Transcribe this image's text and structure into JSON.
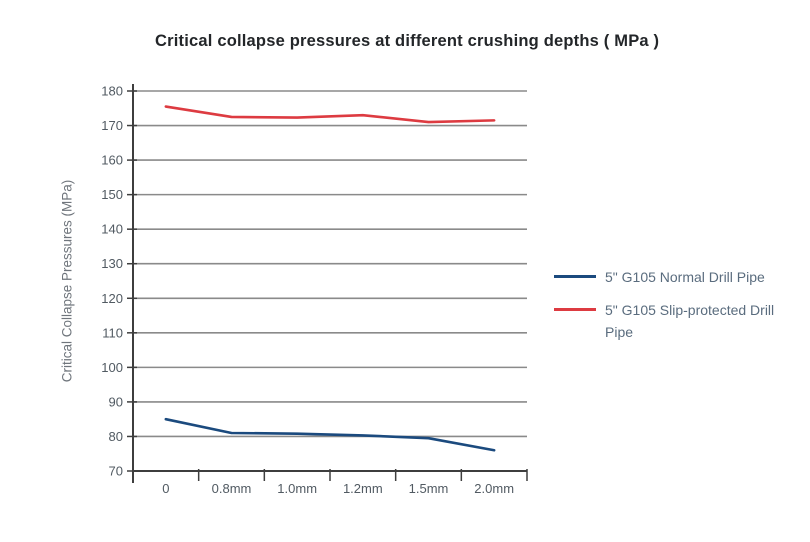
{
  "title": "Critical collapse pressures at different crushing depths ( MPa )",
  "chart_data": {
    "type": "line",
    "title": "Critical collapse pressures at different crushing depths ( MPa )",
    "categories": [
      "0",
      "0.8mm",
      "1.0mm",
      "1.2mm",
      "1.5mm",
      "2.0mm"
    ],
    "series": [
      {
        "name": "5\" G105 Normal Drill Pipe",
        "color": "#1b4a7e",
        "values": [
          85,
          81,
          80.8,
          80.3,
          79.5,
          76
        ]
      },
      {
        "name": "5\" G105 Slip-protected Drill Pipe",
        "color": "#dd3b41",
        "values": [
          175.5,
          172.5,
          172.3,
          173,
          171,
          171.5
        ]
      }
    ],
    "xlabel": "",
    "ylabel": "Critical Collapse Pressures (MPa)",
    "ylim": [
      70,
      180
    ],
    "ytick_step": 10,
    "yticks": [
      70,
      80,
      90,
      100,
      110,
      120,
      130,
      140,
      150,
      160,
      170,
      180
    ],
    "grid": true,
    "legend_position": "right"
  },
  "colors": {
    "gridline": "#8a8a8a",
    "axis": "#3e3e3e",
    "tick_label": "#515a62",
    "axis_title": "#6f757c",
    "title": "#232629",
    "legend_text": "#5a6c7e",
    "background": "#ffffff"
  }
}
